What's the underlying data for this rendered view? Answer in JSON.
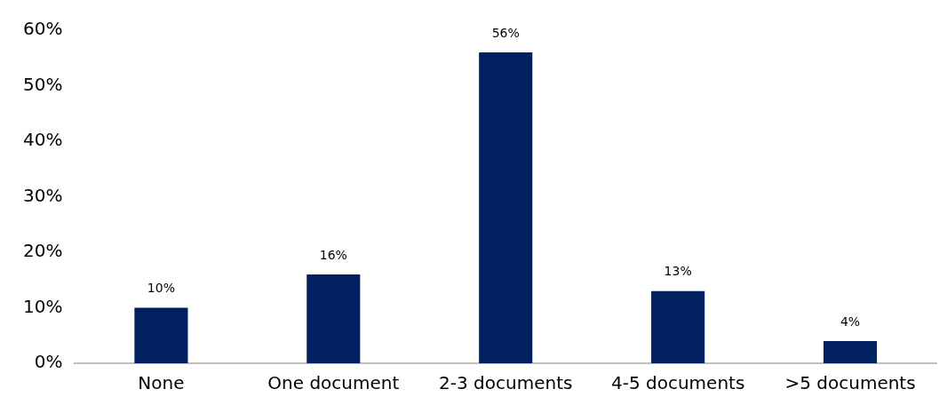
{
  "chart_data": {
    "type": "bar",
    "categories": [
      "None",
      "One document",
      "2-3 documents",
      "4-5 documents",
      ">5 documents"
    ],
    "values": [
      10,
      16,
      56,
      13,
      4
    ],
    "color": "#002060",
    "value_labels": [
      "10%",
      "16%",
      "56%",
      "13%",
      "4%"
    ],
    "ylim": [
      0,
      60
    ],
    "yticks": [
      {
        "value": 0,
        "label": "0%"
      },
      {
        "value": 10,
        "label": "10%"
      },
      {
        "value": 20,
        "label": "20%"
      },
      {
        "value": 30,
        "label": "30%"
      },
      {
        "value": 40,
        "label": "40%"
      },
      {
        "value": 50,
        "label": "50%"
      },
      {
        "value": 60,
        "label": "60%"
      }
    ],
    "grid": false,
    "legend": false
  }
}
